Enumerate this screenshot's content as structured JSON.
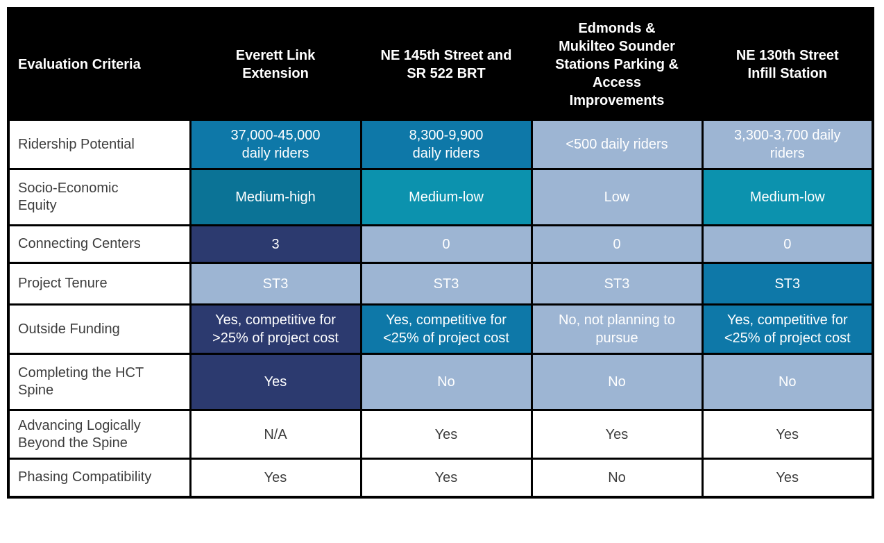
{
  "palette": {
    "header_bg": "#000000",
    "header_text": "#FFFFFF",
    "navy": "#2C3A6F",
    "blue": "#0E78A8",
    "teal_dark": "#0B7396",
    "teal": "#0C92AE",
    "light": "#9DB5D3",
    "white": "#FFFFFF",
    "body_text": "#3D3D3D",
    "border": "#000000"
  },
  "table": {
    "header": {
      "criteria": "Evaluation Criteria",
      "columns": [
        "Everett Link\nExtension",
        "NE 145th Street and\nSR 522 BRT",
        "Edmonds &\nMukilteo Sounder\nStations Parking &\nAccess\nImprovements",
        "NE 130th Street\nInfill Station"
      ]
    },
    "rows": [
      {
        "label": "Ridership Potential",
        "cells": [
          {
            "text": "37,000-45,000\ndaily riders",
            "color": "blue"
          },
          {
            "text": "8,300-9,900\ndaily riders",
            "color": "blue"
          },
          {
            "text": "<500 daily riders",
            "color": "light"
          },
          {
            "text": "3,300-3,700 daily\nriders",
            "color": "light"
          }
        ]
      },
      {
        "label": "Socio-Economic\nEquity",
        "cells": [
          {
            "text": "Medium-high",
            "color": "teal_dark"
          },
          {
            "text": "Medium-low",
            "color": "teal"
          },
          {
            "text": "Low",
            "color": "light"
          },
          {
            "text": "Medium-low",
            "color": "teal"
          }
        ]
      },
      {
        "label": "Connecting Centers",
        "cells": [
          {
            "text": "3",
            "color": "navy"
          },
          {
            "text": "0",
            "color": "light"
          },
          {
            "text": "0",
            "color": "light"
          },
          {
            "text": "0",
            "color": "light"
          }
        ]
      },
      {
        "label": "Project Tenure",
        "cells": [
          {
            "text": "ST3",
            "color": "light"
          },
          {
            "text": "ST3",
            "color": "light"
          },
          {
            "text": "ST3",
            "color": "light"
          },
          {
            "text": "ST3",
            "color": "blue"
          }
        ]
      },
      {
        "label": "Outside Funding",
        "cells": [
          {
            "text": "Yes, competitive for\n>25% of project cost",
            "color": "navy"
          },
          {
            "text": "Yes, competitive for\n<25% of project cost",
            "color": "blue"
          },
          {
            "text": "No, not planning to\npursue",
            "color": "light"
          },
          {
            "text": "Yes, competitive for\n<25% of project cost",
            "color": "blue"
          }
        ]
      },
      {
        "label": "Completing the HCT\nSpine",
        "cells": [
          {
            "text": "Yes",
            "color": "navy"
          },
          {
            "text": "No",
            "color": "light"
          },
          {
            "text": "No",
            "color": "light"
          },
          {
            "text": "No",
            "color": "light"
          }
        ]
      },
      {
        "label": "Advancing Logically\nBeyond the Spine",
        "cells": [
          {
            "text": "N/A",
            "color": "white"
          },
          {
            "text": "Yes",
            "color": "white"
          },
          {
            "text": "Yes",
            "color": "white"
          },
          {
            "text": "Yes",
            "color": "white"
          }
        ]
      },
      {
        "label": "Phasing Compatibility",
        "cells": [
          {
            "text": "Yes",
            "color": "white"
          },
          {
            "text": "Yes",
            "color": "white"
          },
          {
            "text": "No",
            "color": "white"
          },
          {
            "text": "Yes",
            "color": "white"
          }
        ]
      }
    ]
  }
}
